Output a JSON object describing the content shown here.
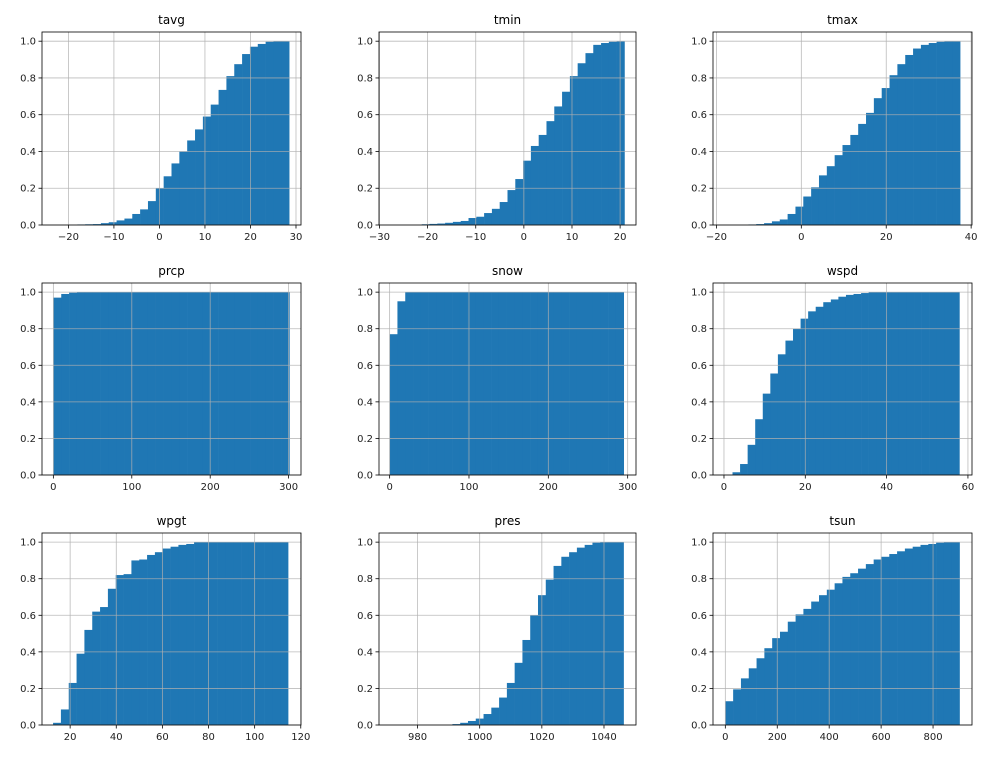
{
  "chart_data": [
    {
      "type": "bar",
      "title": "tavg",
      "cumulative": true,
      "density": true,
      "bin_range": [
        -23.2,
        28.5
      ],
      "xlim": [
        -25.8,
        31.1
      ],
      "ylim": [
        0,
        1.05
      ],
      "xticks": [
        -20,
        -10,
        0,
        10,
        20,
        30
      ],
      "yticks": [
        0.0,
        0.2,
        0.4,
        0.6,
        0.8,
        1.0
      ],
      "grid": true,
      "values": [
        0,
        0,
        0,
        0.003,
        0.004,
        0.005,
        0.01,
        0.015,
        0.025,
        0.035,
        0.06,
        0.085,
        0.13,
        0.2,
        0.265,
        0.335,
        0.4,
        0.46,
        0.52,
        0.59,
        0.655,
        0.735,
        0.81,
        0.875,
        0.93,
        0.97,
        0.985,
        0.997,
        1.0,
        1.0
      ]
    },
    {
      "type": "bar",
      "title": "tmin",
      "cumulative": true,
      "density": true,
      "bin_range": [
        -27.7,
        20.9
      ],
      "xlim": [
        -30.1,
        23.3
      ],
      "ylim": [
        0,
        1.05
      ],
      "xticks": [
        -30,
        -20,
        -10,
        0,
        10,
        20
      ],
      "yticks": [
        0.0,
        0.2,
        0.4,
        0.6,
        0.8,
        1.0
      ],
      "grid": true,
      "values": [
        0,
        0,
        0,
        0,
        0.004,
        0.006,
        0.008,
        0.012,
        0.017,
        0.022,
        0.038,
        0.045,
        0.065,
        0.088,
        0.125,
        0.19,
        0.25,
        0.35,
        0.43,
        0.49,
        0.565,
        0.645,
        0.725,
        0.81,
        0.88,
        0.935,
        0.98,
        0.99,
        0.997,
        1.0
      ]
    },
    {
      "type": "bar",
      "title": "tmax",
      "cumulative": true,
      "density": true,
      "bin_range": [
        -18.0,
        37.4
      ],
      "xlim": [
        -20.8,
        40.2
      ],
      "ylim": [
        0,
        1.05
      ],
      "xticks": [
        -20,
        0,
        20,
        40
      ],
      "yticks": [
        0.0,
        0.2,
        0.4,
        0.6,
        0.8,
        1.0
      ],
      "grid": true,
      "values": [
        0,
        0,
        0,
        0.003,
        0.005,
        0.01,
        0.02,
        0.03,
        0.06,
        0.1,
        0.155,
        0.205,
        0.27,
        0.32,
        0.38,
        0.435,
        0.49,
        0.55,
        0.61,
        0.69,
        0.745,
        0.815,
        0.875,
        0.925,
        0.96,
        0.98,
        0.99,
        0.997,
        1.0,
        1.0
      ]
    },
    {
      "type": "bar",
      "title": "prcp",
      "cumulative": true,
      "density": true,
      "bin_range": [
        0,
        301
      ],
      "xlim": [
        -14.5,
        315.8
      ],
      "ylim": [
        0,
        1.05
      ],
      "xticks": [
        0,
        100,
        200,
        300
      ],
      "yticks": [
        0.0,
        0.2,
        0.4,
        0.6,
        0.8,
        1.0
      ],
      "grid": true,
      "values": [
        0.97,
        0.99,
        0.997,
        1,
        1,
        1,
        1,
        1,
        1,
        1,
        1,
        1,
        1,
        1,
        1,
        1,
        1,
        1,
        1,
        1,
        1,
        1,
        1,
        1,
        1,
        1,
        1,
        1,
        1,
        1
      ]
    },
    {
      "type": "bar",
      "title": "snow",
      "cumulative": true,
      "density": true,
      "bin_range": [
        0,
        295
      ],
      "xlim": [
        -13.4,
        310.5
      ],
      "ylim": [
        0,
        1.05
      ],
      "xticks": [
        0,
        100,
        200,
        300
      ],
      "yticks": [
        0.0,
        0.2,
        0.4,
        0.6,
        0.8,
        1.0
      ],
      "grid": true,
      "values": [
        0.77,
        0.95,
        1,
        1,
        1,
        1,
        1,
        1,
        1,
        1,
        1,
        1,
        1,
        1,
        1,
        1,
        1,
        1,
        1,
        1,
        1,
        1,
        1,
        1,
        1,
        1,
        1,
        1,
        1,
        1
      ]
    },
    {
      "type": "bar",
      "title": "wspd",
      "cumulative": true,
      "density": true,
      "bin_range": [
        2.1,
        57.9
      ],
      "xlim": [
        -2.7,
        61.0
      ],
      "ylim": [
        0,
        1.05
      ],
      "xticks": [
        0,
        20,
        40,
        60
      ],
      "yticks": [
        0.0,
        0.2,
        0.4,
        0.6,
        0.8,
        1.0
      ],
      "grid": true,
      "values": [
        0.015,
        0.06,
        0.165,
        0.305,
        0.445,
        0.555,
        0.66,
        0.735,
        0.8,
        0.855,
        0.895,
        0.92,
        0.945,
        0.96,
        0.975,
        0.985,
        0.99,
        0.995,
        1,
        1,
        1,
        1,
        1,
        1,
        1,
        1,
        1,
        1,
        1,
        1
      ]
    },
    {
      "type": "bar",
      "title": "wpgt",
      "cumulative": true,
      "density": true,
      "bin_range": [
        12.6,
        114.5
      ],
      "xlim": [
        7.8,
        120.1
      ],
      "ylim": [
        0,
        1.05
      ],
      "xticks": [
        20,
        40,
        60,
        80,
        100,
        120
      ],
      "yticks": [
        0.0,
        0.2,
        0.4,
        0.6,
        0.8,
        1.0
      ],
      "grid": true,
      "values": [
        0.012,
        0.085,
        0.23,
        0.39,
        0.52,
        0.62,
        0.645,
        0.745,
        0.82,
        0.825,
        0.9,
        0.905,
        0.93,
        0.945,
        0.965,
        0.975,
        0.985,
        0.99,
        1,
        1,
        1,
        1,
        1,
        1,
        1,
        1,
        1,
        1,
        1,
        1
      ]
    },
    {
      "type": "bar",
      "title": "pres",
      "cumulative": true,
      "density": true,
      "bin_range": [
        971.2,
        1046.3
      ],
      "xlim": [
        967.6,
        1050.3
      ],
      "ylim": [
        0,
        1.05
      ],
      "xticks": [
        980,
        1000,
        1020,
        1040
      ],
      "yticks": [
        0.0,
        0.2,
        0.4,
        0.6,
        0.8,
        1.0
      ],
      "grid": true,
      "values": [
        0,
        0,
        0,
        0,
        0,
        0,
        0,
        0,
        0.005,
        0.012,
        0.022,
        0.035,
        0.06,
        0.095,
        0.15,
        0.23,
        0.34,
        0.465,
        0.6,
        0.71,
        0.795,
        0.87,
        0.92,
        0.945,
        0.97,
        0.985,
        0.997,
        1,
        1,
        1
      ]
    },
    {
      "type": "bar",
      "title": "tsun",
      "cumulative": true,
      "density": true,
      "bin_range": [
        0,
        902
      ],
      "xlim": [
        -47.5,
        950
      ],
      "ylim": [
        0,
        1.05
      ],
      "xticks": [
        0,
        200,
        400,
        600,
        800
      ],
      "yticks": [
        0.0,
        0.2,
        0.4,
        0.6,
        0.8,
        1.0
      ],
      "grid": true,
      "values": [
        0.13,
        0.195,
        0.255,
        0.31,
        0.365,
        0.42,
        0.475,
        0.51,
        0.565,
        0.605,
        0.635,
        0.675,
        0.71,
        0.74,
        0.775,
        0.81,
        0.83,
        0.855,
        0.88,
        0.905,
        0.92,
        0.935,
        0.95,
        0.965,
        0.975,
        0.985,
        0.99,
        0.997,
        1,
        1
      ]
    }
  ],
  "colors": {
    "bar": "#1f77b4",
    "grid": "#b0b0b0",
    "axes": "#000000"
  }
}
